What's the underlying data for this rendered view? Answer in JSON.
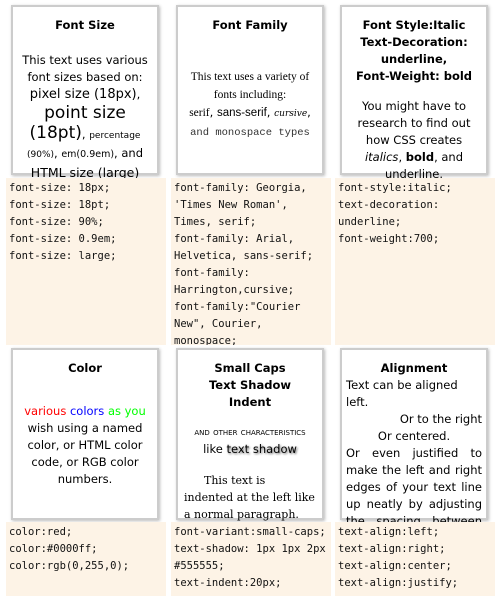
{
  "cells": [
    {
      "title": [
        "Font Size"
      ],
      "body": [
        "This text uses various font sizes based on: ",
        "pixel size (18px)",
        ", ",
        "point size (18pt)",
        ", ",
        "percentage (90%)",
        ", ",
        "em(0.9em)",
        ", and ",
        "HTML size (large)"
      ],
      "code": [
        "font-size: 18px;",
        "font-size: 18pt;",
        "font-size: 90%;",
        "font-size: 0.9em;",
        "font-size: large;"
      ]
    },
    {
      "title": [
        "Font Family"
      ],
      "body": [
        "This text uses a variety of fonts including:",
        "serif",
        ", ",
        "sans-serif",
        ", ",
        "cursive",
        ", ",
        "and monospace types"
      ],
      "code": [
        "font-family: Georgia,",
        "'Times New Roman',",
        "Times, serif;",
        "font-family: Arial,",
        "Helvetica, sans-serif;",
        "font-family:",
        "Harrington,cursive;",
        "font-family:\"Courier",
        "New\", Courier,",
        "monospace;"
      ]
    },
    {
      "title": [
        "Font Style:Italic",
        "Text-Decoration: underline,",
        "Font-Weight: bold"
      ],
      "body": [
        "You might have to research to find out how CSS creates ",
        "italics",
        ", ",
        "bold",
        ", and ",
        "underline",
        "."
      ],
      "code": [
        "font-style:italic;",
        "text-decoration:",
        "underline;",
        "font-weight:700;"
      ]
    },
    {
      "title": [
        "Color"
      ],
      "body": [
        "various",
        " ",
        "colors",
        " ",
        "as you",
        " wish using a named color, or HTML color code, or RGB color numbers."
      ],
      "code": [
        "color:red;",
        "color:#0000ff;",
        "color:rgb(0,255,0);"
      ]
    },
    {
      "title": [
        "Small Caps",
        "Text Shadow",
        "Indent"
      ],
      "body": [
        "and other characteristics",
        " like ",
        "text shadow",
        "This text is indented at the left like a normal paragraph."
      ],
      "code": [
        "font-variant:small-caps;",
        "text-shadow: 1px 1px 2px",
        "#555555;",
        "text-indent:20px;"
      ]
    },
    {
      "title": [
        "Alignment"
      ],
      "body": [
        "Text can be aligned left.",
        "Or to the right",
        "Or centered.",
        "Or even justified to make the left and right edges of your text line up neatly by adjusting the spacing between words."
      ],
      "code": [
        "text-align:left;",
        "text-align:right;",
        "text-align:center;",
        "text-align:justify;"
      ]
    }
  ]
}
